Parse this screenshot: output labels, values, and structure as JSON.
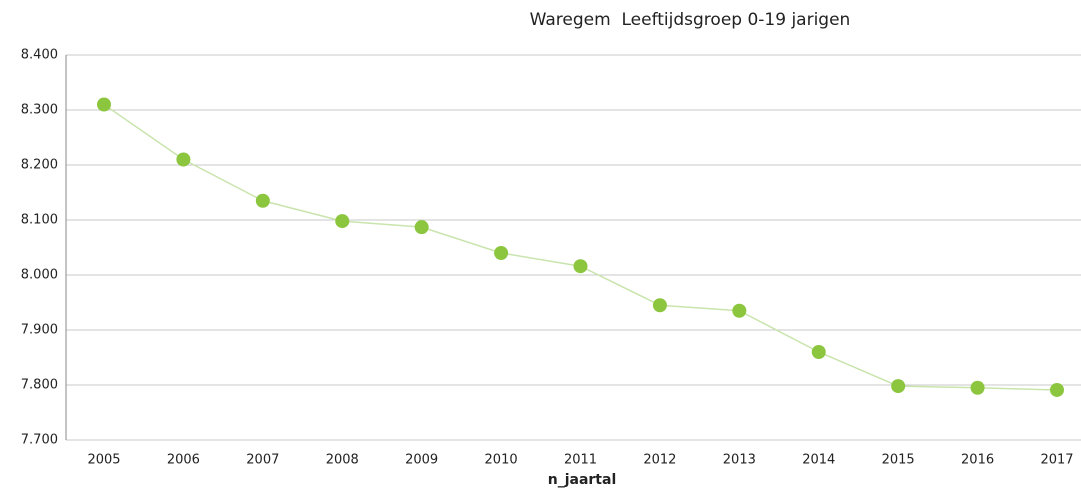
{
  "chart_data": {
    "type": "line",
    "title": "Waregem  Leeftijdsgroep 0-19 jarigen",
    "x_label": "n_jaartal",
    "categories": [
      "2005",
      "2006",
      "2007",
      "2008",
      "2009",
      "2010",
      "2011",
      "2012",
      "2013",
      "2014",
      "2015",
      "2016",
      "2017"
    ],
    "series": [
      {
        "name": "Waregem",
        "color": "#8cc63f",
        "line_color": "#c9e4ad",
        "values": [
          8310,
          8210,
          8135,
          8098,
          8087,
          8040,
          8016,
          7945,
          7935,
          7860,
          7798,
          7795,
          7791
        ]
      }
    ],
    "ylim": [
      7700,
      8400
    ],
    "yticks": [
      {
        "value": 7700,
        "label": "7.700"
      },
      {
        "value": 7800,
        "label": "7.800"
      },
      {
        "value": 7900,
        "label": "7.900"
      },
      {
        "value": 8000,
        "label": "8.000"
      },
      {
        "value": 8100,
        "label": "8.100"
      },
      {
        "value": 8200,
        "label": "8.200"
      },
      {
        "value": 8300,
        "label": "8.300"
      },
      {
        "value": 8400,
        "label": "8.400"
      }
    ],
    "grid": true
  }
}
